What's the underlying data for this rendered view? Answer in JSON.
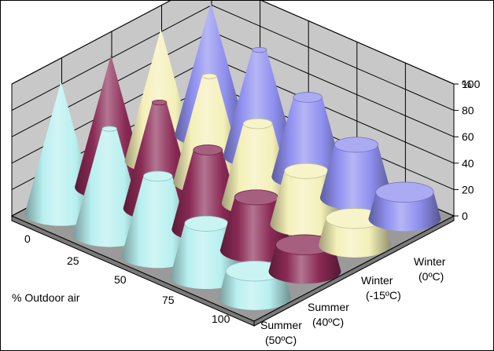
{
  "chart_data": {
    "type": "3d-cone",
    "title": "",
    "xlabel": "% Outdoor air",
    "zlabel": "",
    "ylabel": "%",
    "categories": [
      "0",
      "25",
      "50",
      "75",
      "100"
    ],
    "series": [
      {
        "name": "Winter (0ºC)",
        "label_lines": [
          "Winter",
          "(0ºC)"
        ],
        "color": "#8f8ff0",
        "values": [
          100,
          80,
          60,
          40,
          20
        ]
      },
      {
        "name": "Winter (-15ºC)",
        "label_lines": [
          "Winter",
          "(-15ºC)"
        ],
        "color": "#f4f0b8",
        "values": [
          100,
          80,
          60,
          40,
          20
        ]
      },
      {
        "name": "Summer (40ºC)",
        "label_lines": [
          "Summer",
          "(40ºC)"
        ],
        "color": "#8a2a55",
        "values": [
          100,
          80,
          60,
          40,
          20
        ]
      },
      {
        "name": "Summer (50ºC)",
        "label_lines": [
          "Summer",
          "(50ºC)"
        ],
        "color": "#b8f0f0",
        "values": [
          100,
          80,
          60,
          40,
          20
        ]
      }
    ],
    "ylim": [
      0,
      100
    ],
    "yticks": [
      "0",
      "20",
      "40",
      "60",
      "80",
      "100"
    ],
    "grid": true
  }
}
